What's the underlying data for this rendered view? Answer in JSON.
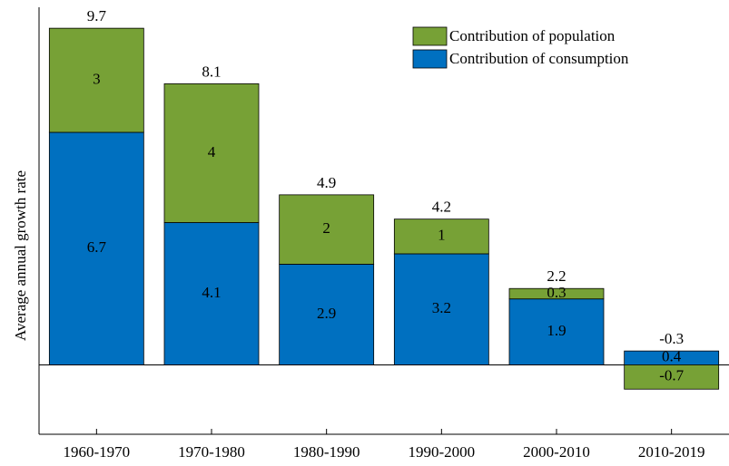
{
  "chart_data": {
    "type": "stacked_bar",
    "y_label": "Average annual growth rate",
    "categories": [
      "1960-1970",
      "1970-1980",
      "1980-1990",
      "1990-2000",
      "2000-2010",
      "2010-2019"
    ],
    "series": [
      {
        "name": "Contribution of consumption",
        "color": "#0070c0",
        "values": [
          6.7,
          4.1,
          2.9,
          3.2,
          1.9,
          0.4
        ]
      },
      {
        "name": "Contribution of population",
        "color": "#77a136",
        "values": [
          3.0,
          4.0,
          2.0,
          1.0,
          0.3,
          -0.7
        ]
      }
    ],
    "totals": [
      9.7,
      8.1,
      4.9,
      4.2,
      2.2,
      -0.3
    ],
    "ylim": [
      -2,
      10.2
    ],
    "legend": "upper right"
  }
}
